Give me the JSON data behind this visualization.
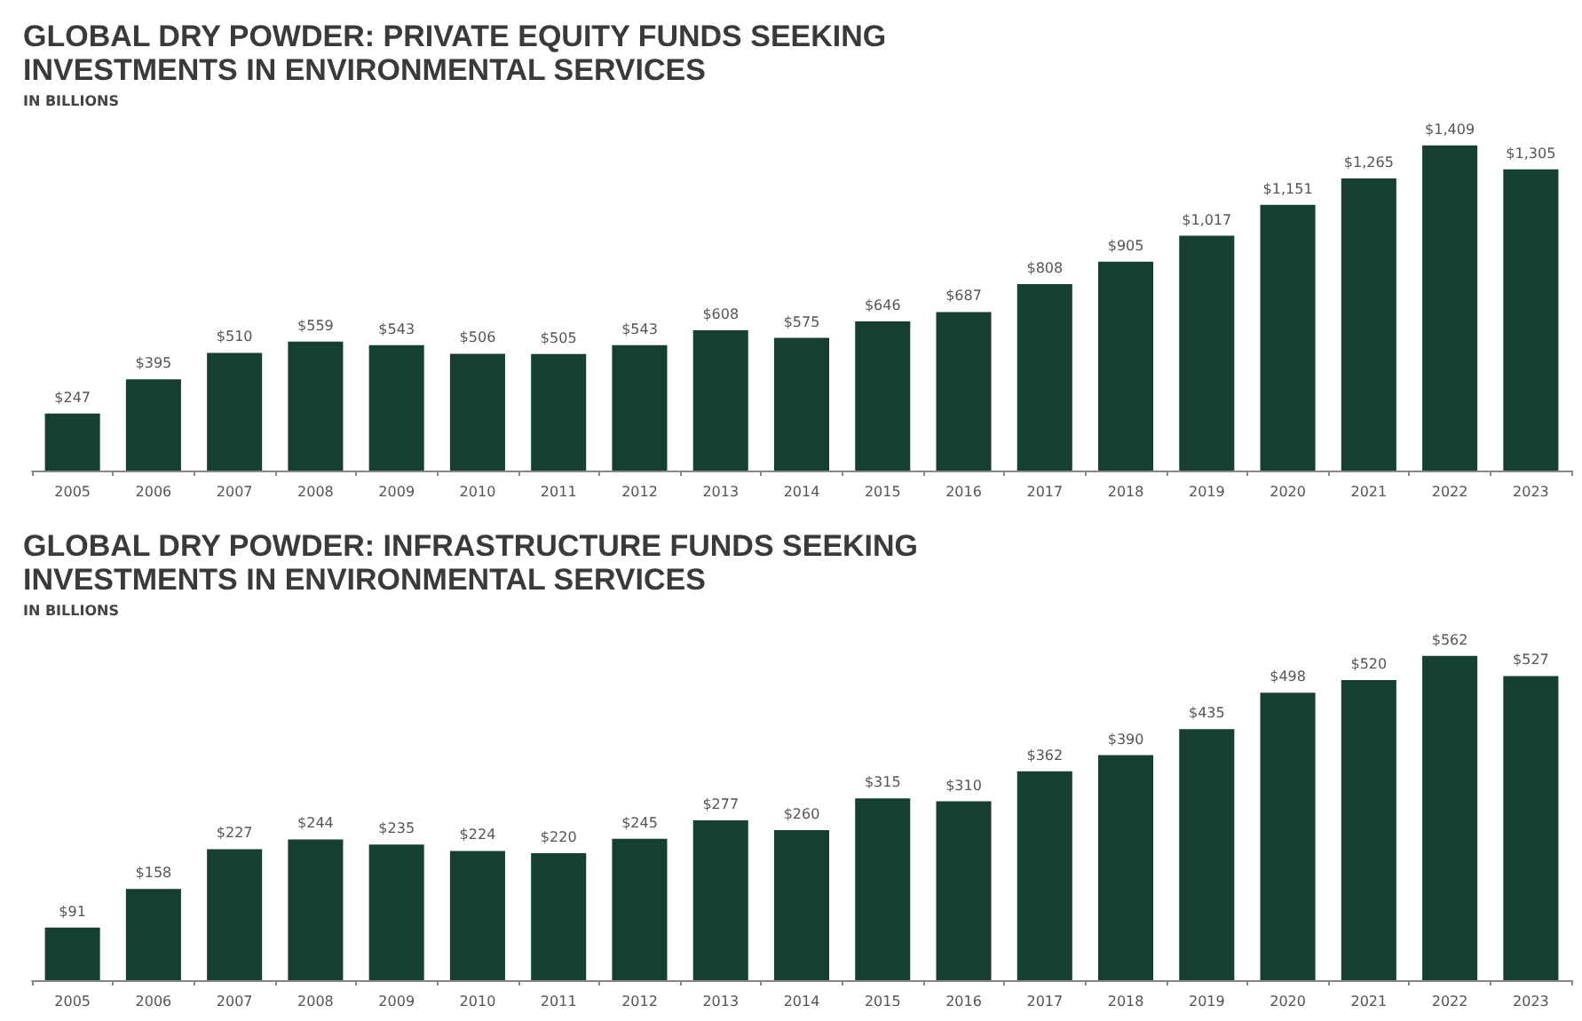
{
  "chart_data": [
    {
      "type": "bar",
      "title": "GLOBAL DRY POWDER: PRIVATE EQUITY FUNDS SEEKING\nINVESTMENTS IN ENVIRONMENTAL SERVICES",
      "subtitle": "IN BILLIONS",
      "categories": [
        "2005",
        "2006",
        "2007",
        "2008",
        "2009",
        "2010",
        "2011",
        "2012",
        "2013",
        "2014",
        "2015",
        "2016",
        "2017",
        "2018",
        "2019",
        "2020",
        "2021",
        "2022",
        "2023"
      ],
      "color": "#173f31",
      "values": [
        247,
        395,
        510,
        559,
        543,
        506,
        505,
        543,
        608,
        575,
        646,
        687,
        808,
        905,
        1017,
        1151,
        1265,
        1409,
        1305
      ],
      "value_labels": [
        "$247",
        "$395",
        "$510",
        "$559",
        "$543",
        "$506",
        "$505",
        "$543",
        "$608",
        "$575",
        "$646",
        "$687",
        "$808",
        "$905",
        "$1,017",
        "$1,151",
        "$1,265",
        "$1,409",
        "$1,305"
      ],
      "tick_labels": "x"
    },
    {
      "type": "bar",
      "title": "GLOBAL DRY POWDER: INFRASTRUCTURE FUNDS SEEKING\nINVESTMENTS IN ENVIRONMENTAL SERVICES",
      "subtitle": "IN BILLIONS",
      "categories": [
        "2005",
        "2006",
        "2007",
        "2008",
        "2009",
        "2010",
        "2011",
        "2012",
        "2013",
        "2014",
        "2015",
        "2016",
        "2017",
        "2018",
        "2019",
        "2020",
        "2021",
        "2022",
        "2023"
      ],
      "color": "#173f31",
      "values": [
        91,
        158,
        227,
        244,
        235,
        224,
        220,
        245,
        277,
        260,
        315,
        310,
        362,
        390,
        435,
        498,
        520,
        562,
        527
      ],
      "value_labels": [
        "$91",
        "$158",
        "$227",
        "$244",
        "$235",
        "$224",
        "$220",
        "$245",
        "$277",
        "$260",
        "$315",
        "$310",
        "$362",
        "$390",
        "$435",
        "$498",
        "$520",
        "$562",
        "$527"
      ],
      "tick_labels": "x"
    }
  ]
}
